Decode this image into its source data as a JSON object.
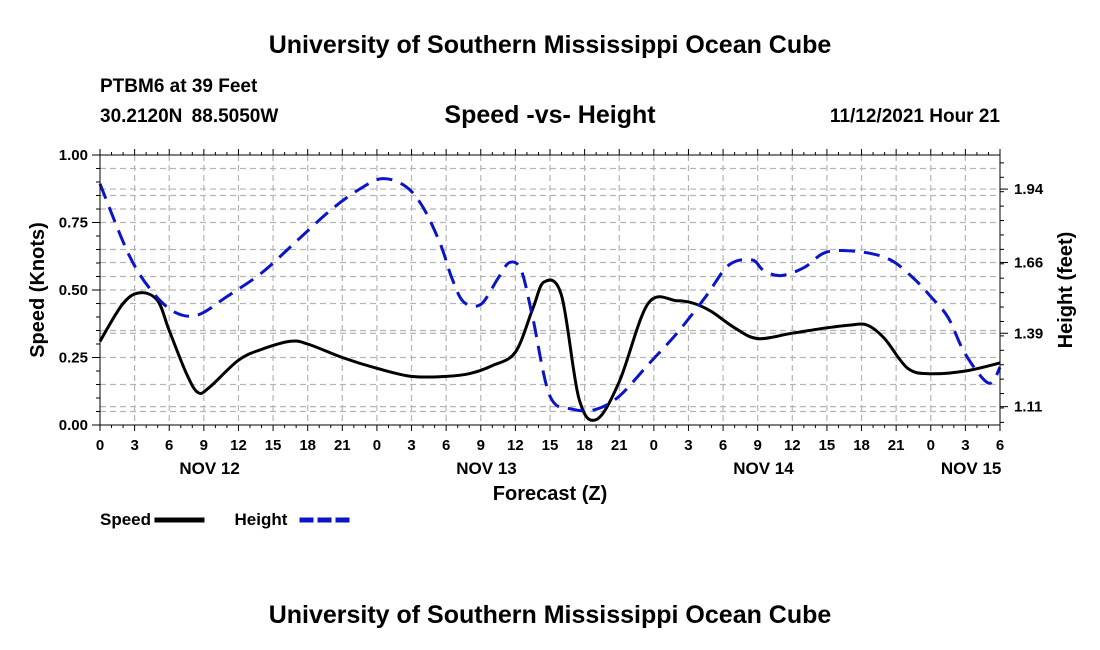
{
  "page": {
    "title_top": "University of Southern Mississippi Ocean Cube",
    "title_bottom": "University of Southern Mississippi Ocean Cube",
    "station": "PTBM6 at 39 Feet",
    "coords": "30.2120N  88.5050W",
    "subtitle": "Speed -vs- Height",
    "datetime": "11/12/2021 Hour 21"
  },
  "colors": {
    "speed": "#000000",
    "height": "#0a14c8",
    "grid": "#b4b4b4"
  },
  "chart_data": {
    "type": "line",
    "title": "Speed -vs- Height",
    "xlabel": "Forecast (Z)",
    "ylabel": "Speed (Knots)",
    "y2label": "Height (feet)",
    "x_unit": "hours from Nov 12 00Z",
    "xlim": [
      0,
      78
    ],
    "ylim": [
      0,
      1
    ],
    "y2lim": [
      1.04,
      2.07
    ],
    "grid": true,
    "x_ticks": [
      {
        "x": 0,
        "label": "0"
      },
      {
        "x": 3,
        "label": "3"
      },
      {
        "x": 6,
        "label": "6"
      },
      {
        "x": 9,
        "label": "9"
      },
      {
        "x": 12,
        "label": "12"
      },
      {
        "x": 15,
        "label": "15"
      },
      {
        "x": 18,
        "label": "18"
      },
      {
        "x": 21,
        "label": "21"
      },
      {
        "x": 24,
        "label": "0"
      },
      {
        "x": 27,
        "label": "3"
      },
      {
        "x": 30,
        "label": "6"
      },
      {
        "x": 33,
        "label": "9"
      },
      {
        "x": 36,
        "label": "12"
      },
      {
        "x": 39,
        "label": "15"
      },
      {
        "x": 42,
        "label": "18"
      },
      {
        "x": 45,
        "label": "21"
      },
      {
        "x": 48,
        "label": "0"
      },
      {
        "x": 51,
        "label": "3"
      },
      {
        "x": 54,
        "label": "6"
      },
      {
        "x": 57,
        "label": "9"
      },
      {
        "x": 60,
        "label": "12"
      },
      {
        "x": 63,
        "label": "15"
      },
      {
        "x": 66,
        "label": "18"
      },
      {
        "x": 69,
        "label": "21"
      },
      {
        "x": 72,
        "label": "0"
      },
      {
        "x": 75,
        "label": "3"
      },
      {
        "x": 78,
        "label": "6"
      }
    ],
    "date_labels": [
      {
        "x": 9.5,
        "label": "NOV 12"
      },
      {
        "x": 33.5,
        "label": "NOV 13"
      },
      {
        "x": 57.5,
        "label": "NOV 14"
      },
      {
        "x": 75.5,
        "label": "NOV 15"
      }
    ],
    "y_ticks": [
      {
        "v": 0,
        "label": "0.00"
      },
      {
        "v": 0.25,
        "label": "0.25"
      },
      {
        "v": 0.5,
        "label": "0.50"
      },
      {
        "v": 0.75,
        "label": "0.75"
      },
      {
        "v": 1,
        "label": "1.00"
      }
    ],
    "y_grid": [
      0.05,
      0.15,
      0.25,
      0.35,
      0.45,
      0.5,
      0.55,
      0.65,
      0.75,
      0.8,
      0.85,
      0.95
    ],
    "y2_ticks": [
      {
        "v": 1.11,
        "label": "1.11"
      },
      {
        "v": 1.39,
        "label": "1.39"
      },
      {
        "v": 1.66,
        "label": "1.66"
      },
      {
        "v": 1.94,
        "label": "1.94"
      }
    ],
    "series": [
      {
        "name": "Speed",
        "axis": "left",
        "style": "solid",
        "x": [
          0,
          2,
          3.5,
          5,
          6,
          7.5,
          8.5,
          9.5,
          12,
          14,
          16.5,
          18,
          21,
          24,
          27,
          30,
          32,
          34,
          36,
          37.5,
          38.5,
          40,
          41.5,
          43,
          45,
          47.5,
          50,
          51.5,
          53,
          55,
          57,
          60,
          63,
          65,
          66.5,
          68,
          70,
          72,
          75,
          78
        ],
        "y": [
          0.31,
          0.45,
          0.49,
          0.46,
          0.35,
          0.19,
          0.12,
          0.14,
          0.24,
          0.28,
          0.31,
          0.3,
          0.25,
          0.21,
          0.18,
          0.18,
          0.19,
          0.22,
          0.27,
          0.43,
          0.53,
          0.48,
          0.1,
          0.02,
          0.16,
          0.45,
          0.46,
          0.45,
          0.42,
          0.36,
          0.32,
          0.34,
          0.36,
          0.37,
          0.37,
          0.32,
          0.21,
          0.19,
          0.2,
          0.23
        ]
      },
      {
        "name": "Height",
        "axis": "right",
        "style": "dashed",
        "x": [
          0,
          2.5,
          4.5,
          6.5,
          8.5,
          11,
          14,
          17,
          20,
          22.5,
          24.5,
          26.5,
          28,
          29.5,
          30.5,
          31.5,
          33,
          34.5,
          35.5,
          36.5,
          37.5,
          39,
          41,
          43,
          45,
          47.5,
          50,
          52.5,
          54.5,
          56.5,
          57.5,
          59,
          61,
          63,
          66,
          68.5,
          70.5,
          72,
          73.5,
          75,
          77,
          78
        ],
        "y": [
          1.96,
          1.69,
          1.55,
          1.47,
          1.46,
          1.53,
          1.62,
          1.74,
          1.86,
          1.94,
          1.98,
          1.95,
          1.87,
          1.73,
          1.6,
          1.51,
          1.5,
          1.6,
          1.66,
          1.63,
          1.45,
          1.15,
          1.1,
          1.1,
          1.15,
          1.27,
          1.39,
          1.53,
          1.65,
          1.67,
          1.63,
          1.61,
          1.64,
          1.7,
          1.7,
          1.67,
          1.6,
          1.53,
          1.45,
          1.31,
          1.2,
          1.26
        ]
      }
    ],
    "legend": [
      {
        "label": "Speed",
        "series": "Speed"
      },
      {
        "label": "Height",
        "series": "Height"
      }
    ],
    "legend_position": "bottom-left"
  }
}
